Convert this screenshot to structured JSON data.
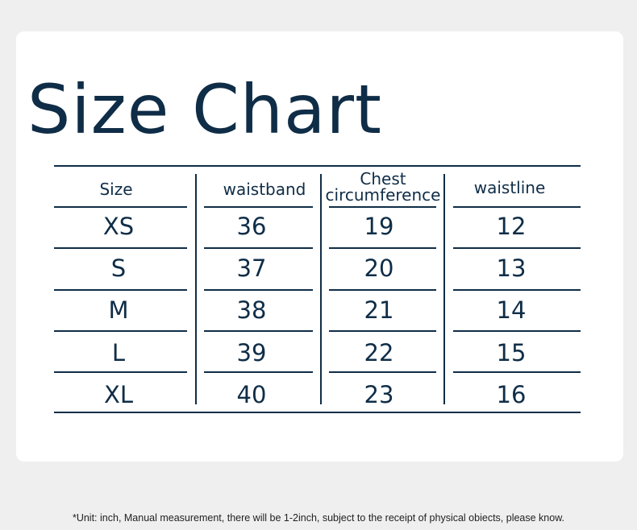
{
  "title": "Size Chart",
  "table": {
    "headers": [
      "Size",
      "waistband",
      "Chest circumference",
      "waistline"
    ],
    "header_lines": {
      "chest_1": "Chest",
      "chest_2": "circumference"
    },
    "rows": [
      [
        "XS",
        "36",
        "19",
        "12"
      ],
      [
        "S",
        "37",
        "20",
        "13"
      ],
      [
        "M",
        "38",
        "21",
        "14"
      ],
      [
        "L",
        "39",
        "22",
        "15"
      ],
      [
        "XL",
        "40",
        "23",
        "16"
      ]
    ]
  },
  "note": "*Unit: inch, Manual measurement, there will be 1-2inch, subject to the receipt of physical obiects, please know.",
  "colors": {
    "text": "#0f2d47",
    "background": "#efefef",
    "card": "#ffffff"
  }
}
